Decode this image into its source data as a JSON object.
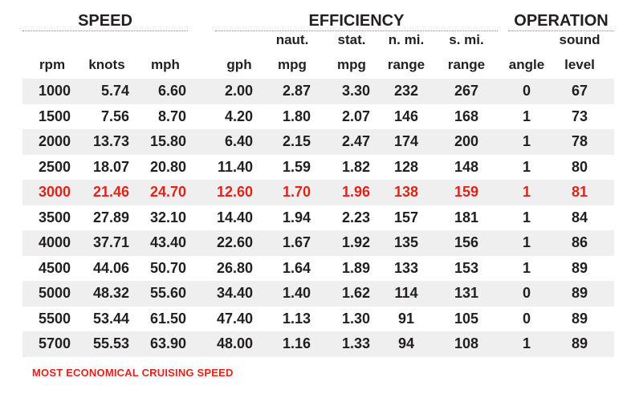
{
  "groups": {
    "speed": "SPEED",
    "efficiency": "EFFICIENCY",
    "operation": "OPERATION"
  },
  "header_top": [
    "",
    "",
    "",
    "",
    "naut.",
    "stat.",
    "n. mi.",
    "s. mi.",
    "",
    "sound"
  ],
  "header_bottom": [
    "rpm",
    "knots",
    "mph",
    "gph",
    "mpg",
    "mpg",
    "range",
    "range",
    "angle",
    "level"
  ],
  "rows": [
    {
      "cells": [
        "1000",
        "5.74",
        "6.60",
        "2.00",
        "2.87",
        "3.30",
        "232",
        "267",
        "0",
        "67"
      ],
      "highlight": false
    },
    {
      "cells": [
        "1500",
        "7.56",
        "8.70",
        "4.20",
        "1.80",
        "2.07",
        "146",
        "168",
        "1",
        "73"
      ],
      "highlight": false
    },
    {
      "cells": [
        "2000",
        "13.73",
        "15.80",
        "6.40",
        "2.15",
        "2.47",
        "174",
        "200",
        "1",
        "78"
      ],
      "highlight": false
    },
    {
      "cells": [
        "2500",
        "18.07",
        "20.80",
        "11.40",
        "1.59",
        "1.82",
        "128",
        "148",
        "1",
        "80"
      ],
      "highlight": false
    },
    {
      "cells": [
        "3000",
        "21.46",
        "24.70",
        "12.60",
        "1.70",
        "1.96",
        "138",
        "159",
        "1",
        "81"
      ],
      "highlight": true
    },
    {
      "cells": [
        "3500",
        "27.89",
        "32.10",
        "14.40",
        "1.94",
        "2.23",
        "157",
        "181",
        "1",
        "84"
      ],
      "highlight": false
    },
    {
      "cells": [
        "4000",
        "37.71",
        "43.40",
        "22.60",
        "1.67",
        "1.92",
        "135",
        "156",
        "1",
        "86"
      ],
      "highlight": false
    },
    {
      "cells": [
        "4500",
        "44.06",
        "50.70",
        "26.80",
        "1.64",
        "1.89",
        "133",
        "153",
        "1",
        "89"
      ],
      "highlight": false
    },
    {
      "cells": [
        "5000",
        "48.32",
        "55.60",
        "34.40",
        "1.40",
        "1.62",
        "114",
        "131",
        "0",
        "89"
      ],
      "highlight": false
    },
    {
      "cells": [
        "5500",
        "53.44",
        "61.50",
        "47.40",
        "1.13",
        "1.30",
        "91",
        "105",
        "0",
        "89"
      ],
      "highlight": false
    },
    {
      "cells": [
        "5700",
        "55.53",
        "63.90",
        "48.00",
        "1.16",
        "1.33",
        "94",
        "108",
        "1",
        "89"
      ],
      "highlight": false
    }
  ],
  "footnote": "MOST ECONOMICAL CRUISING SPEED",
  "colors": {
    "highlight": "#e2231a",
    "row_shade": "#efefef",
    "text": "#231f20"
  }
}
